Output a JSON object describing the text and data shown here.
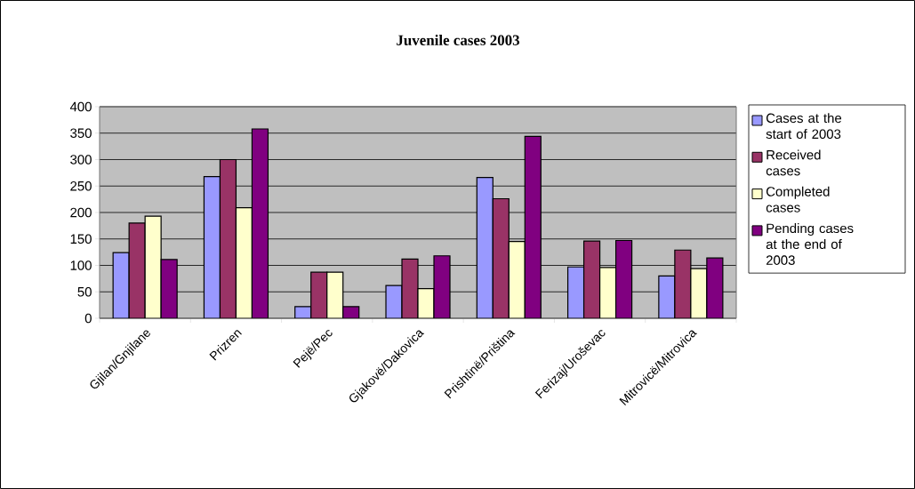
{
  "chart_data": {
    "type": "bar",
    "title": "Juvenile cases 2003",
    "categories": [
      "Gjilan/Gnjilane",
      "Prizren",
      "Pejë/Pec",
      "Gjakovë/Dakovica",
      "Prishtinë/Priština",
      "Ferizaj/Uroševac",
      "Mitrovicë/Mitrovica"
    ],
    "series": [
      {
        "name": "Cases at the start of 2003",
        "color": "#9999ff",
        "values": [
          124,
          268,
          22,
          62,
          266,
          97,
          80
        ]
      },
      {
        "name": "Received cases",
        "color": "#993366",
        "values": [
          180,
          300,
          87,
          112,
          226,
          146,
          129
        ]
      },
      {
        "name": "Completed cases",
        "color": "#ffffcc",
        "values": [
          193,
          209,
          87,
          56,
          145,
          96,
          94
        ]
      },
      {
        "name": "Pending cases at the end of 2003",
        "color": "#800080",
        "values": [
          111,
          358,
          22,
          118,
          344,
          147,
          114
        ]
      }
    ],
    "ylim": [
      0,
      400
    ],
    "yticks": [
      0,
      50,
      100,
      150,
      200,
      250,
      300,
      350,
      400
    ],
    "grid": "y",
    "legend": "right"
  }
}
